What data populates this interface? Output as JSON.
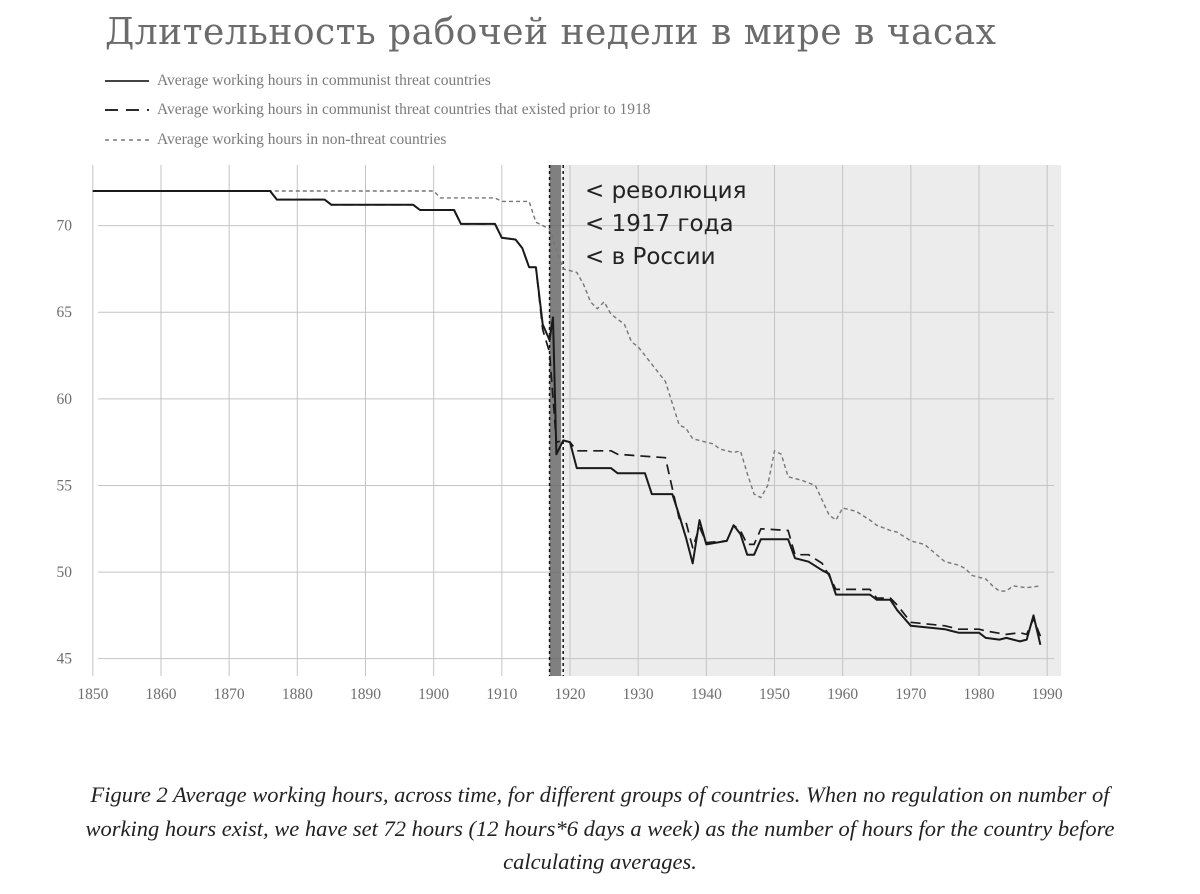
{
  "chart_data": {
    "type": "line",
    "title": "Длительность рабочей недели в мире в часах",
    "xlabel": "",
    "ylabel": "",
    "xlim": [
      1849,
      1991
    ],
    "ylim": [
      44,
      73.5
    ],
    "xticks": [
      1850,
      1860,
      1870,
      1880,
      1890,
      1900,
      1910,
      1920,
      1930,
      1940,
      1950,
      1960,
      1970,
      1980,
      1990
    ],
    "yticks": [
      45,
      50,
      55,
      60,
      65,
      70
    ],
    "grid": true,
    "legend_position": "top-left",
    "shaded_region": {
      "from": 1919,
      "to": 1990,
      "color": "#ececec"
    },
    "revolution_band": {
      "from": 1917,
      "to": 1919,
      "color": "#6a6a6a"
    },
    "vlines": [
      1917,
      1919
    ],
    "annotation": [
      "< революция",
      "< 1917 года",
      "< в России"
    ],
    "series": [
      {
        "name": "Average working hours in communist threat countries",
        "style": "solid",
        "points": [
          [
            1850,
            72
          ],
          [
            1876,
            72
          ],
          [
            1877,
            71.5
          ],
          [
            1884,
            71.5
          ],
          [
            1885,
            71.2
          ],
          [
            1897,
            71.2
          ],
          [
            1898,
            70.9
          ],
          [
            1903,
            70.9
          ],
          [
            1904,
            70.1
          ],
          [
            1909,
            70.1
          ],
          [
            1910,
            69.3
          ],
          [
            1912,
            69.2
          ],
          [
            1913,
            68.7
          ],
          [
            1914,
            67.6
          ],
          [
            1915,
            67.6
          ],
          [
            1916,
            64.3
          ],
          [
            1917,
            63.4
          ],
          [
            1917.5,
            64.7
          ],
          [
            1918,
            56.8
          ],
          [
            1919,
            57.6
          ],
          [
            1920,
            57.5
          ],
          [
            1921,
            56
          ],
          [
            1926,
            56
          ],
          [
            1927,
            55.7
          ],
          [
            1931,
            55.7
          ],
          [
            1932,
            54.5
          ],
          [
            1935,
            54.5
          ],
          [
            1936,
            53.3
          ],
          [
            1937,
            52
          ],
          [
            1938,
            50.5
          ],
          [
            1939,
            53
          ],
          [
            1940,
            51.6
          ],
          [
            1943,
            51.8
          ],
          [
            1944,
            52.7
          ],
          [
            1945,
            52.2
          ],
          [
            1946,
            51
          ],
          [
            1947,
            51
          ],
          [
            1948,
            51.9
          ],
          [
            1952,
            51.9
          ],
          [
            1953,
            50.8
          ],
          [
            1955,
            50.6
          ],
          [
            1957,
            50.1
          ],
          [
            1958,
            49.9
          ],
          [
            1959,
            48.7
          ],
          [
            1964,
            48.7
          ],
          [
            1965,
            48.4
          ],
          [
            1967,
            48.4
          ],
          [
            1968,
            47.8
          ],
          [
            1970,
            46.9
          ],
          [
            1975,
            46.7
          ],
          [
            1976,
            46.6
          ],
          [
            1977,
            46.5
          ],
          [
            1980,
            46.5
          ],
          [
            1981,
            46.2
          ],
          [
            1983,
            46.1
          ],
          [
            1984,
            46.2
          ],
          [
            1985,
            46.1
          ],
          [
            1986,
            46
          ],
          [
            1987,
            46.1
          ],
          [
            1988,
            47.5
          ],
          [
            1989,
            45.8
          ]
        ]
      },
      {
        "name": "Average working hours in communist threat countries that existed prior to 1918",
        "style": "dashed",
        "points": [
          [
            1850,
            72
          ],
          [
            1876,
            72
          ],
          [
            1877,
            71.5
          ],
          [
            1884,
            71.5
          ],
          [
            1885,
            71.2
          ],
          [
            1897,
            71.2
          ],
          [
            1898,
            70.9
          ],
          [
            1903,
            70.9
          ],
          [
            1904,
            70.1
          ],
          [
            1909,
            70.1
          ],
          [
            1910,
            69.3
          ],
          [
            1912,
            69.2
          ],
          [
            1913,
            68.7
          ],
          [
            1914,
            67.6
          ],
          [
            1915,
            67.6
          ],
          [
            1916,
            64
          ],
          [
            1917,
            62.7
          ],
          [
            1918,
            57.5
          ],
          [
            1919,
            57.6
          ],
          [
            1920,
            57.5
          ],
          [
            1921,
            57
          ],
          [
            1926,
            57
          ],
          [
            1927,
            56.8
          ],
          [
            1934,
            56.6
          ],
          [
            1936,
            53.1
          ],
          [
            1937,
            52.9
          ],
          [
            1938,
            51.4
          ],
          [
            1939,
            52.6
          ],
          [
            1940,
            51.7
          ],
          [
            1943,
            51.8
          ],
          [
            1944,
            52.7
          ],
          [
            1945,
            52.4
          ],
          [
            1946,
            51.6
          ],
          [
            1947,
            51.6
          ],
          [
            1948,
            52.5
          ],
          [
            1952,
            52.4
          ],
          [
            1953,
            51
          ],
          [
            1955,
            51
          ],
          [
            1957,
            50.5
          ],
          [
            1958,
            49.8
          ],
          [
            1959,
            49
          ],
          [
            1964,
            49
          ],
          [
            1965,
            48.5
          ],
          [
            1967,
            48.5
          ],
          [
            1968,
            48.1
          ],
          [
            1970,
            47.1
          ],
          [
            1975,
            46.9
          ],
          [
            1977,
            46.7
          ],
          [
            1980,
            46.7
          ],
          [
            1981,
            46.6
          ],
          [
            1984,
            46.4
          ],
          [
            1986,
            46.5
          ],
          [
            1987,
            46.4
          ],
          [
            1988,
            47.3
          ],
          [
            1989,
            46.3
          ]
        ]
      },
      {
        "name": "Average working hours in non-threat countries",
        "style": "dotted",
        "points": [
          [
            1850,
            72
          ],
          [
            1876,
            72
          ],
          [
            1877,
            72
          ],
          [
            1900,
            72
          ],
          [
            1901,
            71.6
          ],
          [
            1909,
            71.6
          ],
          [
            1910,
            71.4
          ],
          [
            1914,
            71.4
          ],
          [
            1915,
            70.2
          ],
          [
            1917,
            69.8
          ],
          [
            1918,
            68.6
          ],
          [
            1919,
            67.5
          ],
          [
            1921,
            67.3
          ],
          [
            1922,
            66.6
          ],
          [
            1923,
            65.6
          ],
          [
            1924,
            65.2
          ],
          [
            1925,
            65.6
          ],
          [
            1926,
            64.9
          ],
          [
            1928,
            64.3
          ],
          [
            1929,
            63.3
          ],
          [
            1930,
            63
          ],
          [
            1931,
            62.5
          ],
          [
            1932,
            62
          ],
          [
            1934,
            61
          ],
          [
            1936,
            58.5
          ],
          [
            1937,
            58.3
          ],
          [
            1938,
            57.7
          ],
          [
            1940,
            57.5
          ],
          [
            1941,
            57.4
          ],
          [
            1942,
            57.1
          ],
          [
            1944,
            56.9
          ],
          [
            1945,
            57
          ],
          [
            1946,
            55.7
          ],
          [
            1947,
            54.5
          ],
          [
            1948,
            54.3
          ],
          [
            1949,
            55
          ],
          [
            1950,
            57
          ],
          [
            1951,
            56.8
          ],
          [
            1952,
            55.5
          ],
          [
            1954,
            55.3
          ],
          [
            1956,
            55
          ],
          [
            1958,
            53.3
          ],
          [
            1959,
            53
          ],
          [
            1960,
            53.7
          ],
          [
            1962,
            53.5
          ],
          [
            1964,
            53
          ],
          [
            1965,
            52.7
          ],
          [
            1967,
            52.4
          ],
          [
            1968,
            52.3
          ],
          [
            1970,
            51.8
          ],
          [
            1972,
            51.6
          ],
          [
            1975,
            50.6
          ],
          [
            1977,
            50.4
          ],
          [
            1978,
            50.2
          ],
          [
            1979,
            49.8
          ],
          [
            1980,
            49.7
          ],
          [
            1981,
            49.6
          ],
          [
            1982,
            49.2
          ],
          [
            1983,
            48.9
          ],
          [
            1984,
            48.9
          ],
          [
            1985,
            49.2
          ],
          [
            1987,
            49.1
          ],
          [
            1989,
            49.2
          ]
        ]
      }
    ]
  },
  "caption": {
    "line1": "Figure 2 Average working hours, across time, for different groups of countries. When no regulation on number of",
    "line2": "working hours exist, we have set 72 hours (12 hours*6 days a week) as the number of hours for the country before",
    "line3": "calculating averages."
  },
  "colors": {
    "grid": "#c4c4c4",
    "shade": "#ececec",
    "band": "#6a6a6a",
    "line": "#1a1a1a",
    "dotted": "#777777",
    "tick_text": "#6e6e6e",
    "annotation_text": "#222222"
  }
}
